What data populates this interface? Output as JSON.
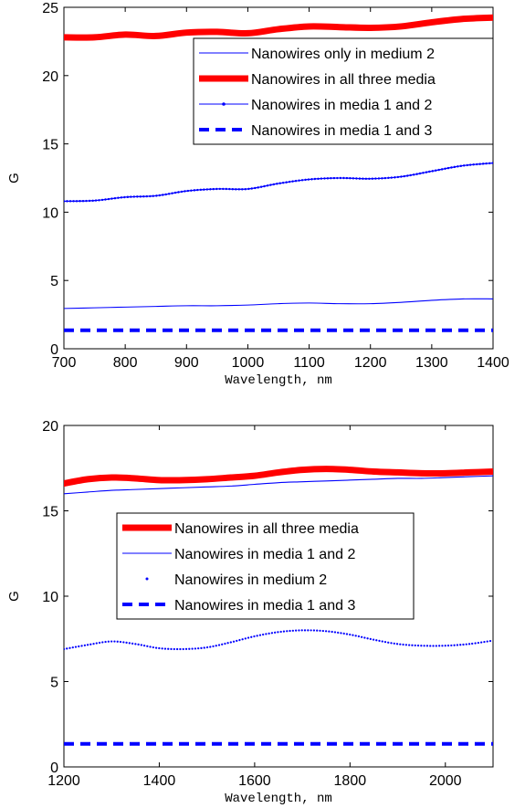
{
  "chart_data": [
    {
      "type": "line",
      "xlabel": "Wavelength, nm",
      "ylabel": "G",
      "xlim": [
        700,
        1400
      ],
      "ylim": [
        0,
        25
      ],
      "xticks": [
        700,
        800,
        900,
        1000,
        1100,
        1200,
        1300,
        1400
      ],
      "yticks": [
        0,
        5,
        10,
        15,
        20,
        25
      ],
      "grid": false,
      "legend_position": "top-right",
      "x": [
        700,
        750,
        800,
        850,
        900,
        950,
        1000,
        1050,
        1100,
        1150,
        1200,
        1250,
        1300,
        1350,
        1400
      ],
      "series": [
        {
          "name": "Nanowires only in medium 2",
          "style": "thin",
          "color": "#0000ff",
          "values": [
            2.95,
            3.0,
            3.05,
            3.1,
            3.15,
            3.15,
            3.2,
            3.3,
            3.35,
            3.3,
            3.3,
            3.4,
            3.55,
            3.65,
            3.65
          ]
        },
        {
          "name": "Nanowires in all three media",
          "style": "thick",
          "color": "#ff0000",
          "values": [
            22.8,
            22.8,
            23.0,
            22.9,
            23.15,
            23.2,
            23.1,
            23.4,
            23.6,
            23.55,
            23.5,
            23.6,
            23.9,
            24.15,
            24.25
          ]
        },
        {
          "name": "Nanowires in media 1 and 2",
          "style": "dotted-line",
          "color": "#0000ff",
          "values": [
            10.8,
            10.85,
            11.1,
            11.2,
            11.55,
            11.7,
            11.7,
            12.1,
            12.4,
            12.5,
            12.45,
            12.6,
            13.0,
            13.4,
            13.6
          ]
        },
        {
          "name": "Nanowires in media 1 and 3",
          "style": "dashed",
          "color": "#0000ff",
          "values": [
            1.35,
            1.35,
            1.35,
            1.35,
            1.35,
            1.35,
            1.35,
            1.35,
            1.35,
            1.35,
            1.35,
            1.35,
            1.35,
            1.35,
            1.35
          ]
        }
      ]
    },
    {
      "type": "line",
      "xlabel": "Wavelength, nm",
      "ylabel": "G",
      "xlim": [
        1200,
        2100
      ],
      "ylim": [
        0,
        20
      ],
      "xticks": [
        1200,
        1400,
        1600,
        1800,
        2000
      ],
      "yticks": [
        0,
        5,
        10,
        15,
        20
      ],
      "grid": false,
      "legend_position": "center",
      "x": [
        1200,
        1250,
        1300,
        1350,
        1400,
        1450,
        1500,
        1550,
        1600,
        1650,
        1700,
        1750,
        1800,
        1850,
        1900,
        1950,
        2000,
        2050,
        2100
      ],
      "series": [
        {
          "name": "Nanowires in all three media",
          "style": "thick",
          "color": "#ff0000",
          "values": [
            16.6,
            16.85,
            16.95,
            16.9,
            16.8,
            16.8,
            16.85,
            16.95,
            17.05,
            17.25,
            17.4,
            17.45,
            17.4,
            17.3,
            17.25,
            17.2,
            17.2,
            17.25,
            17.3
          ]
        },
        {
          "name": "Nanowires in media 1 and 2",
          "style": "thin",
          "color": "#0000ff",
          "values": [
            16.0,
            16.1,
            16.2,
            16.25,
            16.3,
            16.35,
            16.4,
            16.45,
            16.55,
            16.65,
            16.7,
            16.75,
            16.8,
            16.85,
            16.9,
            16.9,
            16.95,
            17.0,
            17.05
          ]
        },
        {
          "name": "Nanowires in medium 2",
          "style": "dots",
          "color": "#0000ff",
          "values": [
            6.9,
            7.15,
            7.35,
            7.2,
            6.95,
            6.9,
            7.0,
            7.3,
            7.65,
            7.9,
            8.0,
            7.95,
            7.75,
            7.45,
            7.2,
            7.1,
            7.1,
            7.2,
            7.4
          ]
        },
        {
          "name": "Nanowires in media 1 and 3",
          "style": "dashed",
          "color": "#0000ff",
          "values": [
            1.35,
            1.35,
            1.35,
            1.35,
            1.35,
            1.35,
            1.35,
            1.35,
            1.35,
            1.35,
            1.35,
            1.35,
            1.35,
            1.35,
            1.35,
            1.35,
            1.35,
            1.35,
            1.35
          ]
        }
      ]
    }
  ]
}
